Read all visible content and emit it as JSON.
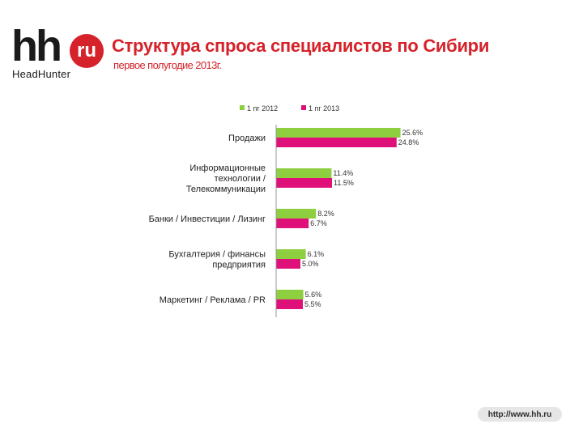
{
  "logo": {
    "mark": "hh",
    "badge": "ru",
    "subtitle": "HeadHunter"
  },
  "header": {
    "title": "Структура спроса специалистов по Сибири",
    "subtitle": "первое полугодие 2013г."
  },
  "footer": {
    "url": "http://www.hh.ru"
  },
  "colors": {
    "series_2012": "#8dcf3f",
    "series_2013": "#e0107a",
    "accent": "#d6222a"
  },
  "chart_data": {
    "type": "bar",
    "orientation": "horizontal",
    "legend_position": "top",
    "grid": false,
    "xlim": [
      0,
      30
    ],
    "categories": [
      [
        "Продажи"
      ],
      [
        "Информационные",
        "технологии /",
        "Телекоммуникации"
      ],
      [
        "Банки / Инвестиции / Лизинг"
      ],
      [
        "Бухгалтерия / финансы",
        "предприятия"
      ],
      [
        "Маркетинг / Реклама / PR"
      ]
    ],
    "series": [
      {
        "name": "1 пг 2012",
        "values": [
          25.6,
          11.4,
          8.2,
          6.1,
          5.6
        ],
        "labels": [
          "25.6%",
          "11.4%",
          "8.2%",
          "6.1%",
          "5.6%"
        ]
      },
      {
        "name": "1 пг 2013",
        "values": [
          24.8,
          11.5,
          6.7,
          5.0,
          5.5
        ],
        "labels": [
          "24.8%",
          "11.5%",
          "6.7%",
          "5.0%",
          "5.5%"
        ]
      }
    ]
  }
}
